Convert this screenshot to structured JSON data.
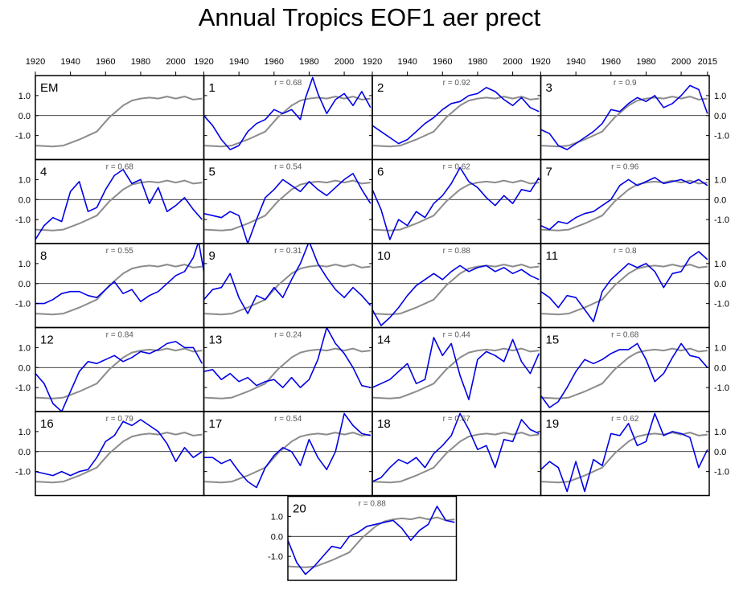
{
  "title": "Annual Tropics EOF1 aer prect",
  "colors": {
    "ensemble_mean": "#8c8c8c",
    "member": "#0000e6",
    "zero_line": "#000000",
    "frame": "#000000"
  },
  "chart_data": {
    "type": "line",
    "title": "Annual Tropics EOF1 aer prect",
    "xlim": [
      1920,
      2016
    ],
    "ylim": [
      -2.2,
      2.0
    ],
    "x_ticks": [
      1920,
      1940,
      1960,
      1980,
      2000
    ],
    "x_tick_labels_top": [
      "1920",
      "1940",
      "1960",
      "1980",
      "2000",
      "1920",
      "1940",
      "1960",
      "1980",
      "2000",
      "1920",
      "1940",
      "1960",
      "1980",
      "2000",
      "1920",
      "1940",
      "1960",
      "1980",
      "2000",
      "2015"
    ],
    "y_ticks": [
      1.0,
      0.0,
      -1.0
    ],
    "y_tick_labels": [
      "1.0",
      "0.0",
      "-1.0"
    ],
    "zero_line": 0,
    "ensemble_mean": {
      "name": "EM",
      "x": [
        1920,
        1930,
        1936,
        1945,
        1955,
        1962,
        1970,
        1975,
        1980,
        1985,
        1990,
        1995,
        2000,
        2005,
        2010,
        2015
      ],
      "y": [
        -1.5,
        -1.55,
        -1.5,
        -1.2,
        -0.8,
        -0.1,
        0.5,
        0.75,
        0.85,
        0.9,
        0.85,
        0.95,
        0.85,
        0.95,
        0.8,
        0.85
      ]
    },
    "panels": [
      {
        "label": "EM",
        "r": "",
        "x": [],
        "y": []
      },
      {
        "label": "1",
        "r": "r = 0.68",
        "x": [
          1920,
          1925,
          1930,
          1935,
          1940,
          1945,
          1950,
          1955,
          1960,
          1965,
          1970,
          1975,
          1978,
          1982,
          1985,
          1990,
          1995,
          2000,
          2005,
          2010,
          2015
        ],
        "y": [
          0.0,
          -0.5,
          -1.2,
          -1.7,
          -1.5,
          -0.8,
          -0.4,
          -0.2,
          0.3,
          0.1,
          0.3,
          -0.2,
          0.9,
          1.9,
          1.1,
          0.1,
          0.8,
          1.1,
          0.5,
          1.2,
          0.4
        ]
      },
      {
        "label": "2",
        "r": "r = 0.92",
        "x": [
          1920,
          1925,
          1930,
          1935,
          1940,
          1945,
          1950,
          1955,
          1960,
          1965,
          1970,
          1975,
          1980,
          1985,
          1990,
          1995,
          2000,
          2005,
          2010,
          2015
        ],
        "y": [
          -0.5,
          -0.8,
          -1.1,
          -1.4,
          -1.2,
          -0.8,
          -0.4,
          -0.1,
          0.3,
          0.6,
          0.7,
          1.0,
          1.1,
          1.4,
          1.2,
          0.8,
          0.5,
          0.9,
          0.4,
          0.2
        ]
      },
      {
        "label": "3",
        "r": "r = 0.9",
        "x": [
          1920,
          1925,
          1930,
          1935,
          1940,
          1945,
          1950,
          1955,
          1960,
          1965,
          1970,
          1975,
          1980,
          1985,
          1990,
          1995,
          2000,
          2005,
          2010,
          2015
        ],
        "y": [
          -0.7,
          -0.9,
          -1.5,
          -1.7,
          -1.4,
          -1.1,
          -0.8,
          -0.4,
          0.3,
          0.2,
          0.6,
          0.9,
          0.7,
          1.0,
          0.4,
          0.6,
          1.0,
          1.5,
          1.3,
          0.1
        ]
      },
      {
        "label": "4",
        "r": "r = 0.68",
        "x": [
          1920,
          1925,
          1930,
          1935,
          1940,
          1945,
          1950,
          1955,
          1960,
          1965,
          1970,
          1975,
          1980,
          1985,
          1990,
          1995,
          2000,
          2005,
          2010,
          2015
        ],
        "y": [
          -2.0,
          -1.3,
          -0.9,
          -1.1,
          0.4,
          0.9,
          -0.6,
          -0.4,
          0.5,
          1.2,
          1.5,
          0.8,
          1.0,
          -0.2,
          0.6,
          -0.6,
          -0.3,
          0.1,
          -0.5,
          -1.0
        ]
      },
      {
        "label": "5",
        "r": "r = 0.54",
        "x": [
          1920,
          1925,
          1930,
          1935,
          1940,
          1945,
          1950,
          1955,
          1960,
          1965,
          1970,
          1975,
          1980,
          1985,
          1990,
          1995,
          2000,
          2005,
          2010,
          2015
        ],
        "y": [
          -0.7,
          -0.8,
          -0.9,
          -0.6,
          -0.8,
          -2.2,
          -1.0,
          0.1,
          0.5,
          1.0,
          0.7,
          0.4,
          0.9,
          0.5,
          0.2,
          0.6,
          1.0,
          1.3,
          0.5,
          -0.2
        ]
      },
      {
        "label": "6",
        "r": "r = 0.62",
        "x": [
          1920,
          1925,
          1930,
          1935,
          1940,
          1945,
          1950,
          1955,
          1960,
          1965,
          1970,
          1975,
          1980,
          1985,
          1990,
          1995,
          2000,
          2005,
          2010,
          2015
        ],
        "y": [
          0.5,
          -0.5,
          -2.0,
          -1.0,
          -1.3,
          -0.6,
          -0.9,
          -0.2,
          0.2,
          0.8,
          1.6,
          0.9,
          0.6,
          0.1,
          -0.3,
          0.2,
          -0.2,
          0.5,
          0.4,
          1.1
        ]
      },
      {
        "label": "7",
        "r": "r = 0.96",
        "x": [
          1920,
          1925,
          1930,
          1935,
          1940,
          1945,
          1950,
          1955,
          1960,
          1965,
          1970,
          1975,
          1980,
          1985,
          1990,
          1995,
          2000,
          2005,
          2010,
          2015
        ],
        "y": [
          -1.3,
          -1.5,
          -1.1,
          -1.2,
          -0.9,
          -0.7,
          -0.6,
          -0.3,
          0.0,
          0.7,
          1.0,
          0.7,
          0.9,
          1.1,
          0.8,
          0.9,
          1.0,
          0.8,
          1.0,
          0.7
        ]
      },
      {
        "label": "8",
        "r": "r = 0.55",
        "x": [
          1920,
          1925,
          1930,
          1935,
          1940,
          1945,
          1950,
          1955,
          1960,
          1965,
          1970,
          1975,
          1980,
          1985,
          1990,
          1995,
          2000,
          2005,
          2010,
          2013,
          2016
        ],
        "y": [
          -1.0,
          -1.0,
          -0.8,
          -0.5,
          -0.4,
          -0.4,
          -0.6,
          -0.7,
          -0.3,
          0.1,
          -0.5,
          -0.3,
          -0.9,
          -0.6,
          -0.4,
          0.0,
          0.4,
          0.6,
          1.3,
          2.1,
          0.6
        ]
      },
      {
        "label": "9",
        "r": "r = 0.31",
        "x": [
          1920,
          1925,
          1930,
          1935,
          1940,
          1945,
          1950,
          1955,
          1960,
          1965,
          1970,
          1975,
          1980,
          1985,
          1990,
          1995,
          2000,
          2005,
          2010,
          2015
        ],
        "y": [
          -0.8,
          -0.3,
          -0.2,
          0.5,
          -0.7,
          -1.5,
          -0.6,
          -0.8,
          -0.2,
          -0.7,
          0.2,
          1.0,
          2.1,
          1.0,
          0.3,
          -0.3,
          -0.7,
          -0.2,
          -0.6,
          -1.1
        ]
      },
      {
        "label": "10",
        "r": "r = 0.88",
        "x": [
          1920,
          1925,
          1930,
          1935,
          1940,
          1945,
          1950,
          1955,
          1960,
          1965,
          1970,
          1975,
          1980,
          1985,
          1990,
          1995,
          2000,
          2005,
          2010,
          2015
        ],
        "y": [
          -1.3,
          -2.1,
          -1.7,
          -1.2,
          -0.6,
          -0.1,
          0.2,
          0.5,
          0.2,
          0.6,
          0.9,
          0.6,
          0.8,
          0.9,
          0.6,
          0.8,
          0.5,
          0.7,
          0.4,
          0.2
        ]
      },
      {
        "label": "11",
        "r": "r = 0.8",
        "x": [
          1920,
          1925,
          1930,
          1935,
          1940,
          1945,
          1950,
          1955,
          1960,
          1965,
          1970,
          1975,
          1980,
          1985,
          1990,
          1995,
          2000,
          2005,
          2010,
          2015
        ],
        "y": [
          -0.4,
          -0.7,
          -1.2,
          -0.6,
          -0.7,
          -1.3,
          -1.9,
          -0.4,
          0.2,
          0.6,
          1.0,
          0.8,
          1.0,
          0.6,
          -0.2,
          0.5,
          0.6,
          1.3,
          1.6,
          1.2
        ]
      },
      {
        "label": "12",
        "r": "r = 0.84",
        "x": [
          1920,
          1925,
          1930,
          1935,
          1940,
          1945,
          1950,
          1955,
          1960,
          1965,
          1970,
          1975,
          1980,
          1985,
          1990,
          1995,
          2000,
          2005,
          2010,
          2015
        ],
        "y": [
          -0.3,
          -0.8,
          -1.8,
          -2.2,
          -1.2,
          -0.2,
          0.3,
          0.2,
          0.4,
          0.6,
          0.3,
          0.5,
          0.8,
          0.7,
          0.9,
          1.2,
          1.3,
          1.0,
          1.0,
          0.2
        ]
      },
      {
        "label": "13",
        "r": "r = 0.24",
        "x": [
          1920,
          1925,
          1930,
          1935,
          1940,
          1945,
          1950,
          1955,
          1960,
          1965,
          1970,
          1975,
          1980,
          1985,
          1990,
          1995,
          2000,
          2005,
          2010,
          2015
        ],
        "y": [
          -0.2,
          -0.1,
          -0.6,
          -0.3,
          -0.7,
          -0.5,
          -0.9,
          -0.7,
          -0.6,
          -1.0,
          -0.5,
          -1.0,
          -0.6,
          0.4,
          2.0,
          1.2,
          0.7,
          0.0,
          -0.9,
          -1.0
        ]
      },
      {
        "label": "14",
        "r": "r = 0.44",
        "x": [
          1920,
          1925,
          1930,
          1935,
          1940,
          1945,
          1950,
          1955,
          1960,
          1965,
          1970,
          1975,
          1980,
          1985,
          1990,
          1995,
          2000,
          2005,
          2010,
          2015
        ],
        "y": [
          -1.0,
          -0.8,
          -0.6,
          -0.2,
          0.2,
          -0.8,
          -0.6,
          1.5,
          0.6,
          1.2,
          -0.4,
          -1.6,
          0.4,
          0.8,
          0.6,
          0.3,
          1.4,
          0.3,
          -0.3,
          0.7
        ]
      },
      {
        "label": "15",
        "r": "r = 0.68",
        "x": [
          1920,
          1925,
          1930,
          1935,
          1940,
          1945,
          1950,
          1955,
          1960,
          1965,
          1970,
          1975,
          1980,
          1985,
          1990,
          1995,
          2000,
          2005,
          2010,
          2015
        ],
        "y": [
          -1.4,
          -2.0,
          -1.7,
          -1.0,
          -0.2,
          0.4,
          0.2,
          0.4,
          0.7,
          0.9,
          0.9,
          1.2,
          0.4,
          -0.7,
          -0.3,
          0.5,
          1.2,
          0.6,
          0.5,
          0.0
        ]
      },
      {
        "label": "16",
        "r": "r = 0.79",
        "x": [
          1920,
          1925,
          1930,
          1935,
          1940,
          1945,
          1950,
          1955,
          1960,
          1965,
          1970,
          1975,
          1980,
          1985,
          1990,
          1995,
          2000,
          2005,
          2010,
          2015
        ],
        "y": [
          -1.0,
          -1.1,
          -1.2,
          -1.0,
          -1.2,
          -1.0,
          -0.9,
          -0.3,
          0.5,
          0.8,
          1.5,
          1.3,
          1.6,
          1.3,
          1.0,
          0.4,
          -0.5,
          0.2,
          -0.3,
          0.0
        ]
      },
      {
        "label": "17",
        "r": "r = 0.54",
        "x": [
          1920,
          1925,
          1930,
          1935,
          1940,
          1945,
          1950,
          1955,
          1960,
          1965,
          1970,
          1975,
          1980,
          1985,
          1990,
          1995,
          2000,
          2005,
          2010,
          2015
        ],
        "y": [
          -0.3,
          -0.3,
          -0.6,
          -0.4,
          -1.0,
          -1.5,
          -1.8,
          -0.8,
          -0.2,
          0.2,
          0.0,
          -0.7,
          0.6,
          -0.3,
          -0.9,
          0.0,
          1.9,
          1.3,
          0.9,
          0.8
        ]
      },
      {
        "label": "18",
        "r": "r = 0.67",
        "x": [
          1920,
          1925,
          1930,
          1935,
          1940,
          1945,
          1950,
          1955,
          1960,
          1965,
          1970,
          1975,
          1980,
          1985,
          1990,
          1995,
          2000,
          2005,
          2010,
          2015
        ],
        "y": [
          -1.5,
          -1.3,
          -0.8,
          -0.4,
          -0.6,
          -0.3,
          -0.8,
          -0.1,
          0.3,
          0.8,
          1.9,
          1.1,
          0.1,
          0.3,
          -0.8,
          0.6,
          0.5,
          1.6,
          1.1,
          0.9
        ]
      },
      {
        "label": "19",
        "r": "r = 0.62",
        "x": [
          1920,
          1925,
          1930,
          1935,
          1940,
          1945,
          1950,
          1955,
          1960,
          1965,
          1970,
          1975,
          1980,
          1985,
          1990,
          1995,
          2000,
          2005,
          2010,
          2015
        ],
        "y": [
          -0.9,
          -0.5,
          -0.8,
          -2.0,
          -0.5,
          -2.0,
          -0.4,
          -0.7,
          0.9,
          0.8,
          1.4,
          0.3,
          0.5,
          1.9,
          0.8,
          1.0,
          0.9,
          0.7,
          -0.8,
          0.1
        ]
      },
      {
        "label": "20",
        "r": "r = 0.88",
        "x": [
          1920,
          1925,
          1930,
          1935,
          1940,
          1945,
          1950,
          1955,
          1960,
          1965,
          1970,
          1975,
          1980,
          1985,
          1990,
          1995,
          2000,
          2005,
          2010,
          2015
        ],
        "y": [
          -0.2,
          -1.3,
          -1.9,
          -1.5,
          -1.0,
          -0.5,
          -0.6,
          0.0,
          0.2,
          0.5,
          0.6,
          0.7,
          0.8,
          0.4,
          -0.2,
          0.3,
          0.6,
          1.5,
          0.8,
          0.7
        ]
      }
    ]
  }
}
